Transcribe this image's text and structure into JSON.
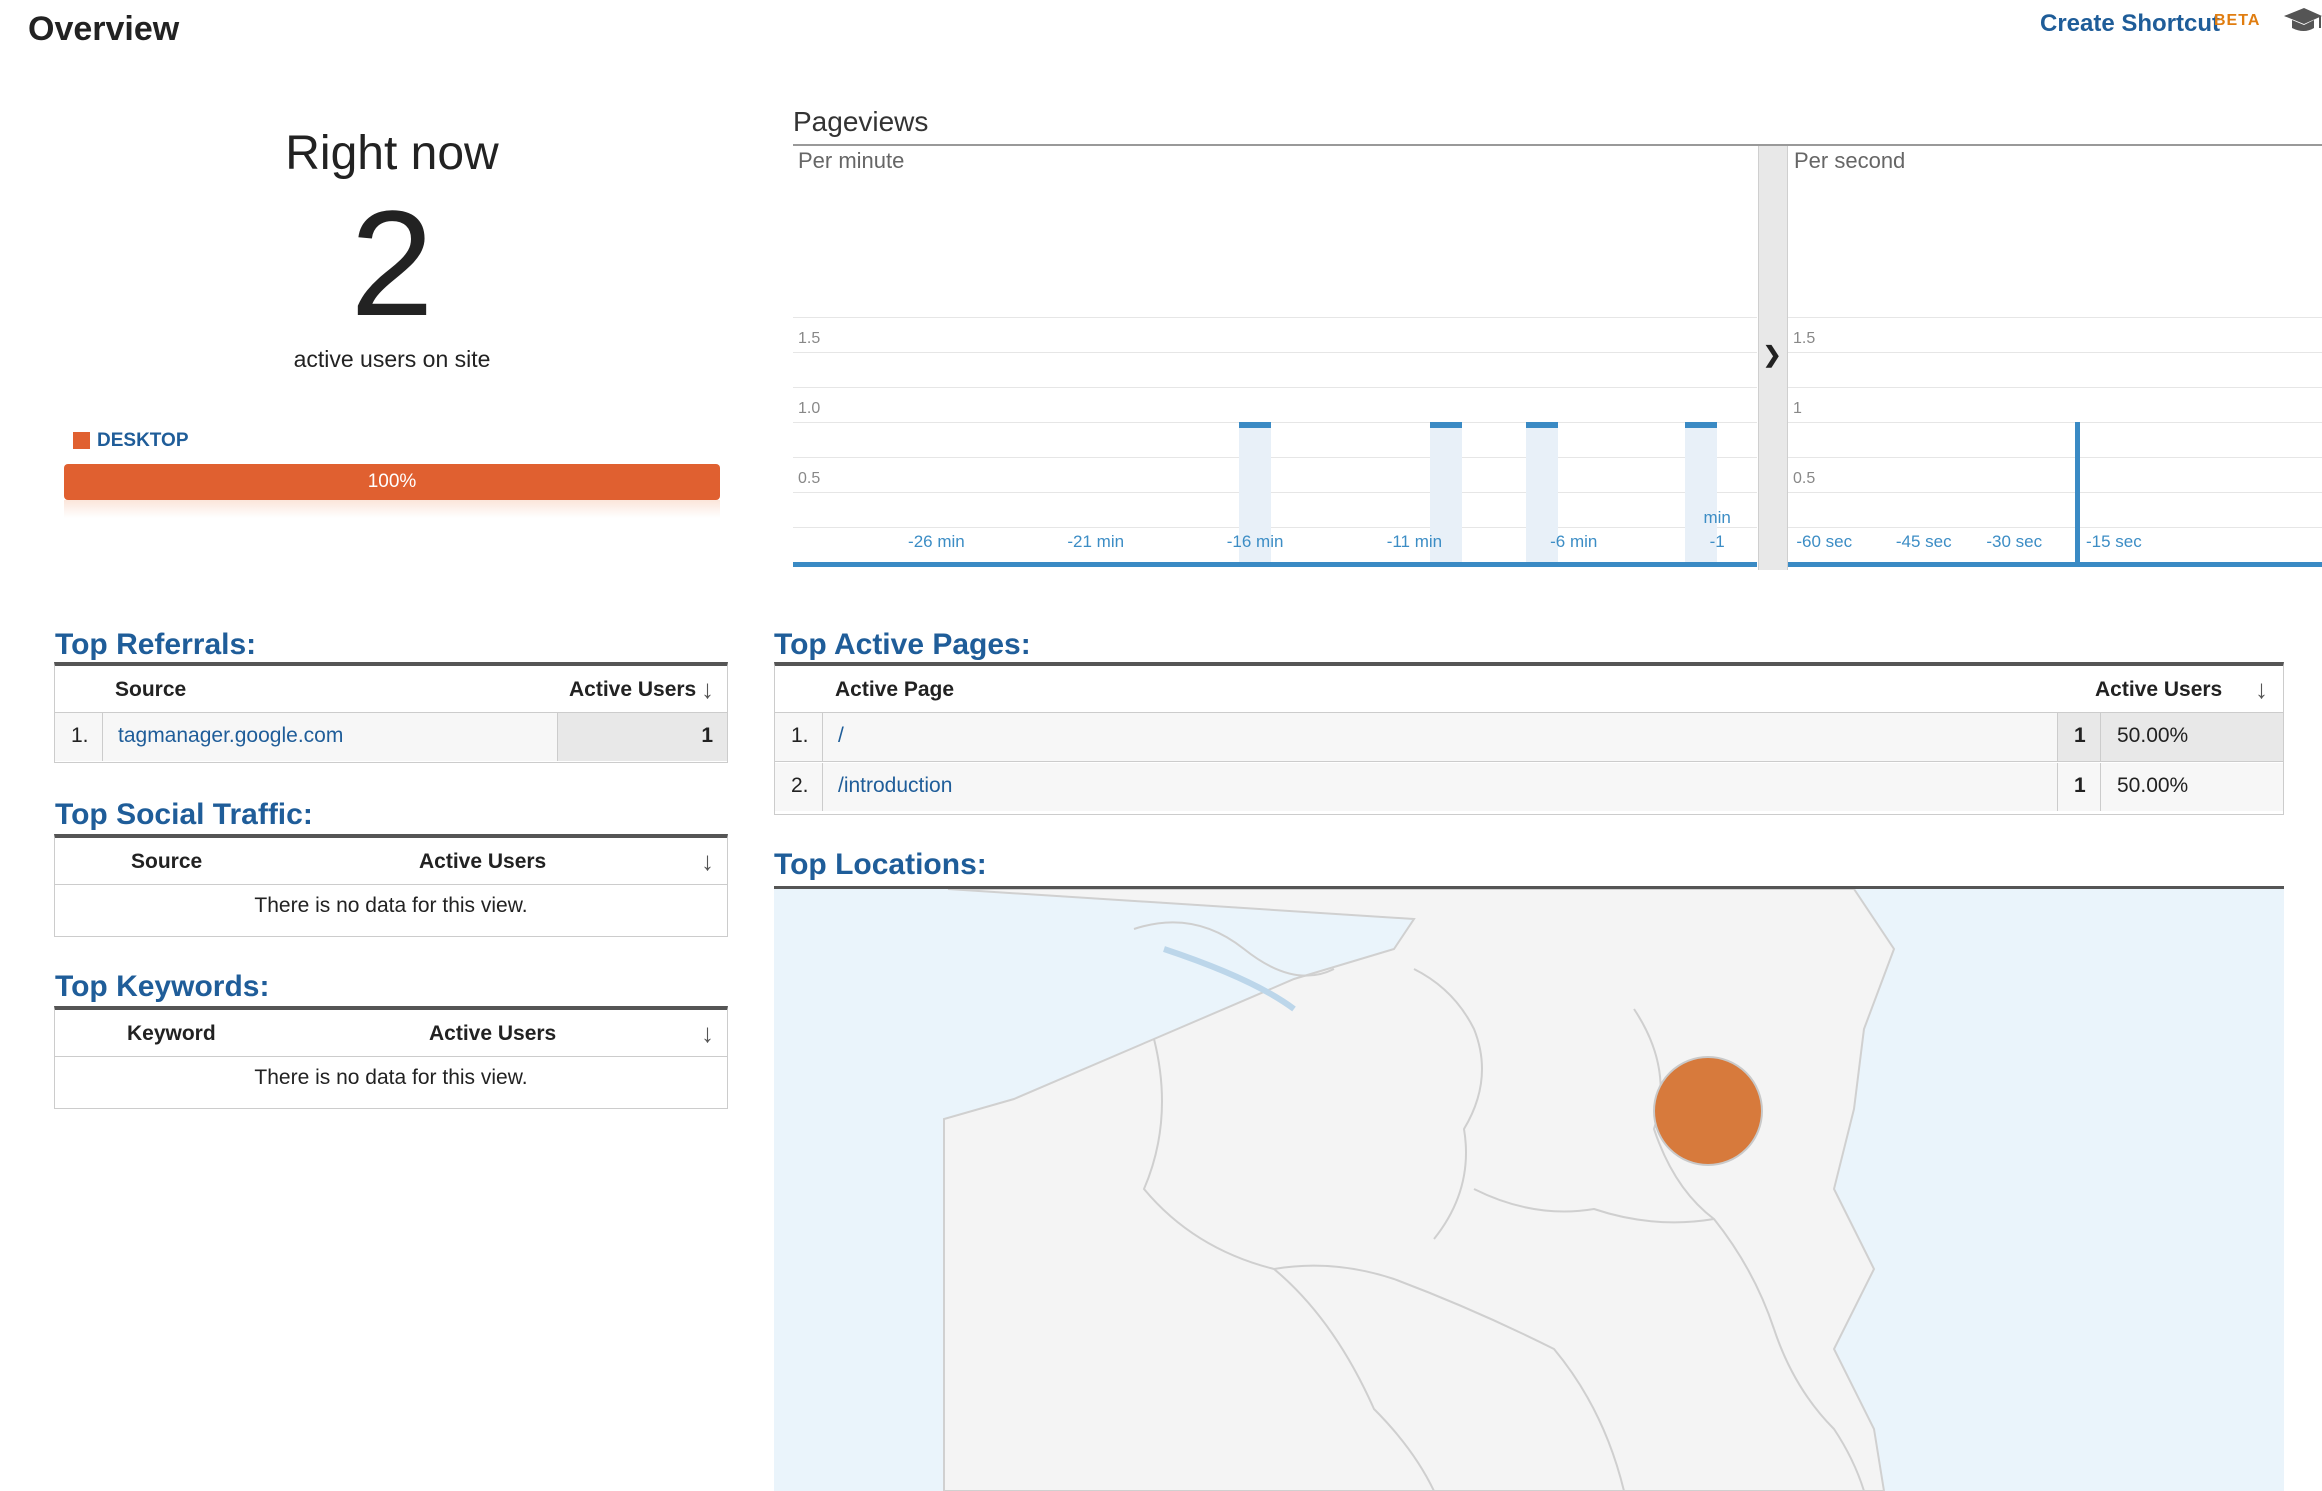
{
  "header": {
    "title": "Overview",
    "create_shortcut": "Create Shortcut",
    "beta": "BETA",
    "colors": {
      "link": "#1f5d99",
      "beta": "#e07d10"
    }
  },
  "right_now": {
    "heading": "Right now",
    "count": "2",
    "subtitle": "active users on site",
    "device_label": "DESKTOP",
    "device_percent_label": "100%",
    "device_share": 1.0,
    "device_color": "#e06030"
  },
  "pageviews": {
    "title": "Pageviews",
    "per_minute_label": "Per minute",
    "per_second_label": "Per second",
    "divider_icon": "chevron-right-icon"
  },
  "chart_data": [
    {
      "type": "bar",
      "title": "Per minute",
      "y_ticks": [
        "1.5",
        "1.0",
        "0.5"
      ],
      "ylim": [
        0,
        2
      ],
      "x_tick_labels": [
        "-26 min",
        "-21 min",
        "-16 min",
        "-11 min",
        "-6 min",
        "min\n-1"
      ],
      "x": [
        -16,
        -10,
        -7,
        -2
      ],
      "values": [
        1,
        1,
        1,
        1
      ],
      "color": "#3a8ac4"
    },
    {
      "type": "bar",
      "title": "Per second",
      "y_ticks": [
        "1.5",
        "1",
        "0.5"
      ],
      "ylim": [
        0,
        2
      ],
      "x_tick_labels": [
        "-60 sec",
        "-45 sec",
        "-30 sec",
        "-15 sec"
      ],
      "x": [
        -29
      ],
      "values": [
        1
      ],
      "color": "#3a8ac4"
    }
  ],
  "top_referrals": {
    "title": "Top Referrals:",
    "col_source": "Source",
    "col_users": "Active Users",
    "rows": [
      {
        "rank": "1.",
        "source": "tagmanager.google.com",
        "users": "1"
      }
    ]
  },
  "top_social": {
    "title": "Top Social Traffic:",
    "col_source": "Source",
    "col_users": "Active Users",
    "empty": "There is no data for this view."
  },
  "top_keywords": {
    "title": "Top Keywords:",
    "col_keyword": "Keyword",
    "col_users": "Active Users",
    "empty": "There is no data for this view."
  },
  "top_pages": {
    "title": "Top Active Pages:",
    "col_page": "Active Page",
    "col_users": "Active Users",
    "rows": [
      {
        "rank": "1.",
        "page": "/",
        "users": "1",
        "pct": "50.00%"
      },
      {
        "rank": "2.",
        "page": "/introduction",
        "users": "1",
        "pct": "50.00%"
      }
    ]
  },
  "top_locations": {
    "title": "Top Locations:",
    "marker_color": "#d77a3c"
  }
}
